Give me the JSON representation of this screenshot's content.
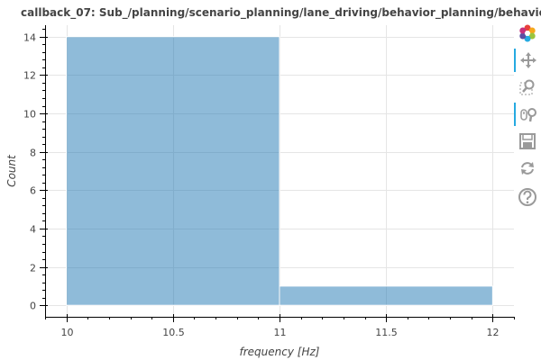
{
  "chart_data": {
    "type": "bar",
    "title": "callback_07: Sub_/planning/scenario_planning/lane_driving/behavior_planning/behavior_",
    "xlabel": "frequency [Hz]",
    "ylabel": "Count",
    "bins": [
      {
        "x0": 10,
        "x1": 11,
        "value": 14
      },
      {
        "x0": 11,
        "x1": 12,
        "value": 1
      }
    ],
    "xlim": [
      9.9,
      12.1
    ],
    "ylim": [
      -0.6,
      14.6
    ],
    "x_ticks": [
      "10",
      "10.5",
      "11",
      "11.5",
      "12"
    ],
    "y_ticks": [
      "0",
      "2",
      "4",
      "6",
      "8",
      "10",
      "12",
      "14"
    ],
    "grid": true,
    "bar_color": "#1f77b4"
  },
  "toolbar": {
    "tools": [
      {
        "name": "bokeh-logo-icon",
        "active": false
      },
      {
        "name": "pan-icon",
        "active": true
      },
      {
        "name": "box-zoom-icon",
        "active": false
      },
      {
        "name": "wheel-zoom-icon",
        "active": true
      },
      {
        "name": "save-icon",
        "active": false
      },
      {
        "name": "reset-icon",
        "active": false
      },
      {
        "name": "help-icon",
        "active": false
      }
    ]
  }
}
